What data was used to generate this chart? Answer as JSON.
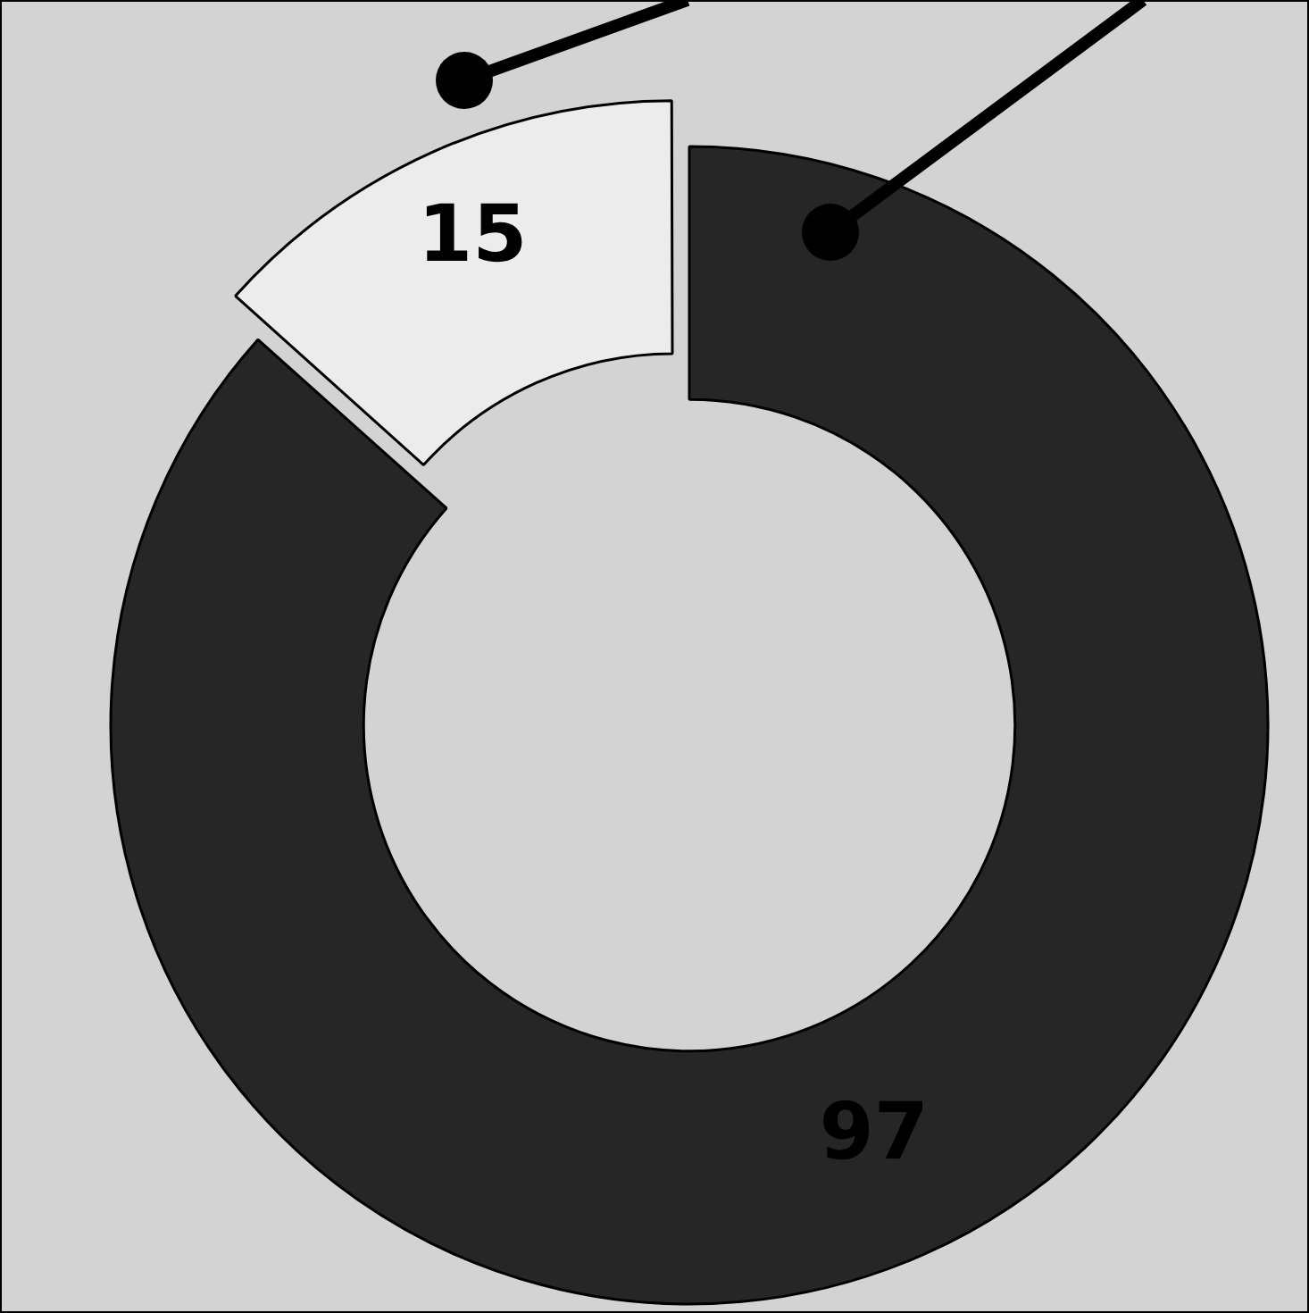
{
  "chart_data": {
    "type": "donut",
    "categories": [
      null,
      null
    ],
    "values": [
      97,
      15
    ],
    "colors": [
      "#262626",
      "#ececec"
    ],
    "data_labels": true,
    "legend": false
  }
}
